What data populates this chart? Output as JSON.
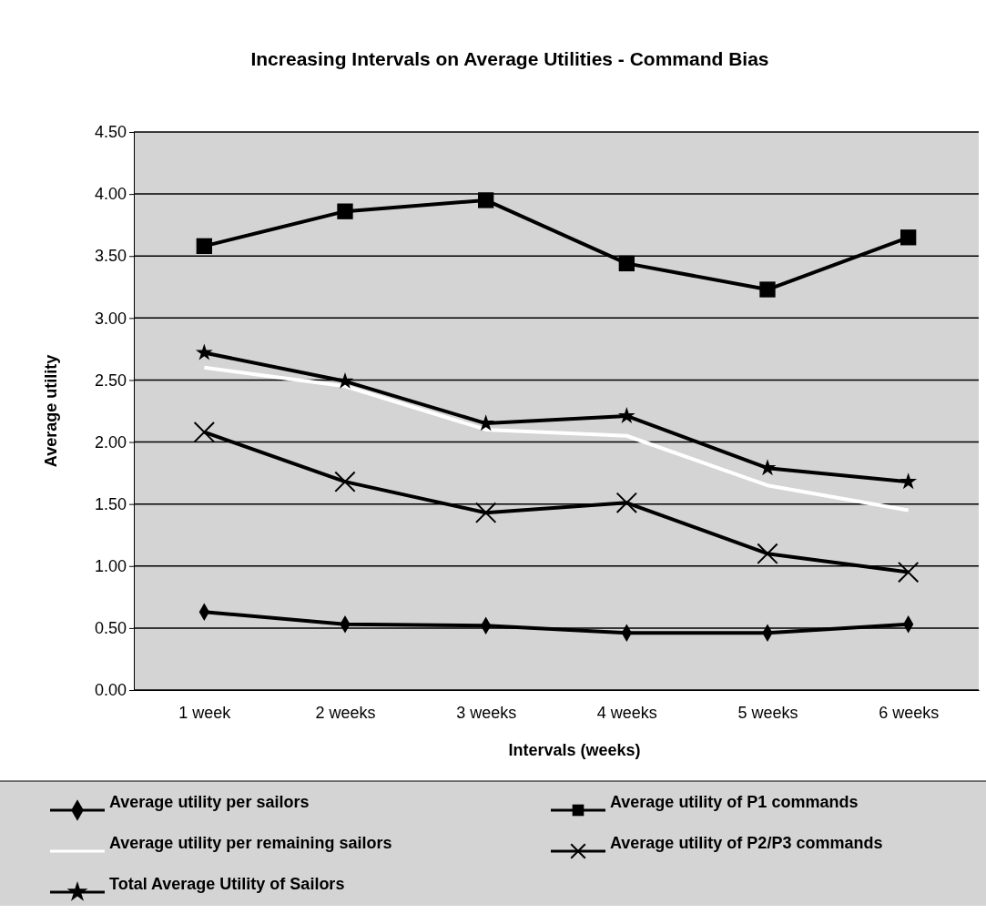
{
  "chart_data": {
    "type": "line",
    "title": "Increasing Intervals on Average Utilities - Command Bias",
    "xlabel": "Intervals (weeks)",
    "ylabel": "Average utility",
    "categories": [
      "1 week",
      "2 weeks",
      "3 weeks",
      "4 weeks",
      "5 weeks",
      "6 weeks"
    ],
    "ylim": [
      0,
      4.5
    ],
    "yticks": [
      {
        "value": 0,
        "label": "0.00"
      },
      {
        "value": 0.5,
        "label": "0.50"
      },
      {
        "value": 1,
        "label": "1.00"
      },
      {
        "value": 1.5,
        "label": "1.50"
      },
      {
        "value": 2,
        "label": "2.00"
      },
      {
        "value": 2.5,
        "label": "2.50"
      },
      {
        "value": 3,
        "label": "3.00"
      },
      {
        "value": 3.5,
        "label": "3.50"
      },
      {
        "value": 4,
        "label": "4.00"
      },
      {
        "value": 4.5,
        "label": "4.50"
      }
    ],
    "grid": "y",
    "legend": "bottom",
    "line_style": "solid",
    "series": [
      {
        "name": "Average utility per sailors",
        "color": "#000000",
        "marker": "diamond",
        "values": [
          0.63,
          0.53,
          0.52,
          0.46,
          0.46,
          0.53
        ]
      },
      {
        "name": "Average utility of P1 commands",
        "color": "#000000",
        "marker": "square",
        "values": [
          3.58,
          3.86,
          3.95,
          3.44,
          3.23,
          3.65
        ]
      },
      {
        "name": "Average utility per remaining sailors",
        "color": "#ffffff",
        "marker": "none",
        "values": [
          2.6,
          2.45,
          2.1,
          2.05,
          1.65,
          1.45
        ]
      },
      {
        "name": "Average utility of P2/P3 commands",
        "color": "#000000",
        "marker": "cross",
        "values": [
          2.08,
          1.68,
          1.43,
          1.51,
          1.1,
          0.95
        ]
      },
      {
        "name": "Total Average Utility of Sailors",
        "color": "#000000",
        "marker": "star",
        "values": [
          2.72,
          2.49,
          2.15,
          2.21,
          1.79,
          1.68
        ]
      }
    ]
  }
}
